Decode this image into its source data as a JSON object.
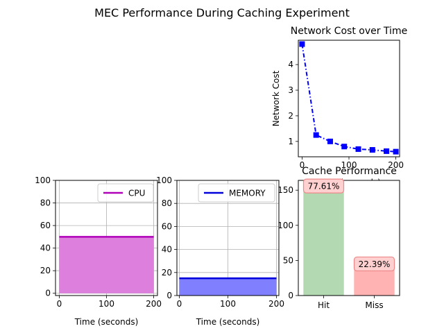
{
  "figure": {
    "suptitle": "MEC Performance During Caching Experiment"
  },
  "chart_data": [
    {
      "id": "cpu",
      "type": "area",
      "title": "",
      "xlabel": "Time (seconds)",
      "ylabel": "",
      "xlim": [
        -8,
        208
      ],
      "ylim": [
        -2,
        100
      ],
      "xticks": [
        0,
        100,
        200
      ],
      "yticks": [
        0,
        20,
        40,
        60,
        80,
        100
      ],
      "grid": true,
      "legend": "upper right",
      "series": [
        {
          "name": "CPU",
          "x": [
            0,
            200
          ],
          "y": [
            50,
            50
          ],
          "color": "#b000b8",
          "fill": "#dd7fdd"
        }
      ]
    },
    {
      "id": "memory",
      "type": "area",
      "title": "",
      "xlabel": "Time (seconds)",
      "ylabel": "",
      "xlim": [
        -5,
        205
      ],
      "ylim": [
        0,
        100
      ],
      "xticks": [
        0,
        100,
        200
      ],
      "yticks": [
        0,
        20,
        40,
        60,
        80,
        100
      ],
      "grid": true,
      "legend": "upper right",
      "series": [
        {
          "name": "MEMORY",
          "x": [
            0,
            200
          ],
          "y": [
            15,
            15
          ],
          "color": "#0000dd",
          "fill": "#8080ff"
        }
      ]
    },
    {
      "id": "network",
      "type": "line",
      "title": "Network Cost over Time",
      "xlabel": "Time (seconds)",
      "ylabel": "Network Cost",
      "xlim": [
        -8,
        208
      ],
      "ylim": [
        0.4,
        4.95
      ],
      "xticks": [
        0,
        100,
        200
      ],
      "yticks": [
        1,
        2,
        3,
        4
      ],
      "grid": false,
      "series": [
        {
          "name": "",
          "x": [
            0,
            30,
            60,
            90,
            120,
            150,
            180,
            200
          ],
          "y": [
            4.8,
            1.25,
            1.0,
            0.8,
            0.7,
            0.67,
            0.62,
            0.6
          ],
          "color": "#0000ff"
        }
      ]
    },
    {
      "id": "cache",
      "type": "bar",
      "title": "Cache Performance",
      "xlabel": "",
      "ylabel": "",
      "categories": [
        "Hit",
        "Miss"
      ],
      "values": [
        156,
        45
      ],
      "ylim": [
        0,
        164
      ],
      "yticks": [
        0,
        50,
        100,
        150
      ],
      "colors": [
        "#b3d9b3",
        "#ffb3b3"
      ],
      "data_labels": [
        "77.61%",
        "22.39%"
      ]
    }
  ]
}
